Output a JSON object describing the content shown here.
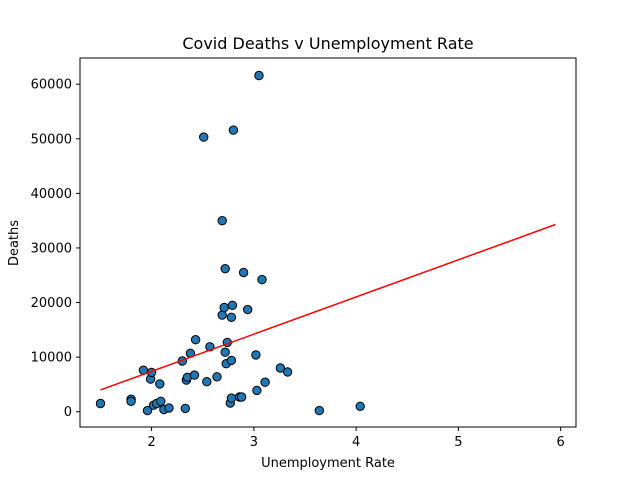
{
  "chart_data": {
    "type": "scatter",
    "title": "Covid Deaths v Unemployment Rate",
    "xlabel": "Unemployment Rate",
    "ylabel": "Deaths",
    "xlim": [
      1.3,
      6.15
    ],
    "ylim": [
      -2800,
      64800
    ],
    "xticks": [
      2,
      3,
      4,
      5,
      6
    ],
    "yticks": [
      0,
      10000,
      20000,
      30000,
      40000,
      50000,
      60000
    ],
    "grid": false,
    "colors": {
      "points": "#1f77b4",
      "point_edge": "#000000",
      "trend": "#ff0000"
    },
    "series": [
      {
        "type": "scatter",
        "points": [
          [
            1.5,
            1500
          ],
          [
            1.8,
            2300
          ],
          [
            1.8,
            1900
          ],
          [
            1.92,
            7600
          ],
          [
            1.96,
            200
          ],
          [
            1.99,
            6000
          ],
          [
            2.0,
            7200
          ],
          [
            2.02,
            1200
          ],
          [
            2.05,
            1500
          ],
          [
            2.08,
            5100
          ],
          [
            2.09,
            1900
          ],
          [
            2.12,
            400
          ],
          [
            2.17,
            700
          ],
          [
            2.3,
            9300
          ],
          [
            2.33,
            600
          ],
          [
            2.34,
            5800
          ],
          [
            2.35,
            6300
          ],
          [
            2.38,
            10700
          ],
          [
            2.42,
            6700
          ],
          [
            2.43,
            13200
          ],
          [
            2.51,
            50300
          ],
          [
            2.54,
            5500
          ],
          [
            2.57,
            11900
          ],
          [
            2.64,
            6400
          ],
          [
            2.69,
            17700
          ],
          [
            2.69,
            35000
          ],
          [
            2.71,
            19100
          ],
          [
            2.72,
            10900
          ],
          [
            2.72,
            26200
          ],
          [
            2.73,
            8800
          ],
          [
            2.74,
            12700
          ],
          [
            2.77,
            1600
          ],
          [
            2.78,
            2500
          ],
          [
            2.78,
            9400
          ],
          [
            2.78,
            17300
          ],
          [
            2.79,
            19500
          ],
          [
            2.8,
            51600
          ],
          [
            2.86,
            2700
          ],
          [
            2.88,
            2700
          ],
          [
            2.9,
            25500
          ],
          [
            2.94,
            18700
          ],
          [
            3.02,
            10400
          ],
          [
            3.03,
            3900
          ],
          [
            3.05,
            61600
          ],
          [
            3.08,
            24200
          ],
          [
            3.11,
            5400
          ],
          [
            3.26,
            8000
          ],
          [
            3.33,
            7300
          ],
          [
            3.64,
            200
          ],
          [
            4.04,
            1000
          ]
        ]
      },
      {
        "type": "line",
        "points": [
          [
            1.5,
            4000
          ],
          [
            5.95,
            34300
          ]
        ]
      }
    ]
  }
}
